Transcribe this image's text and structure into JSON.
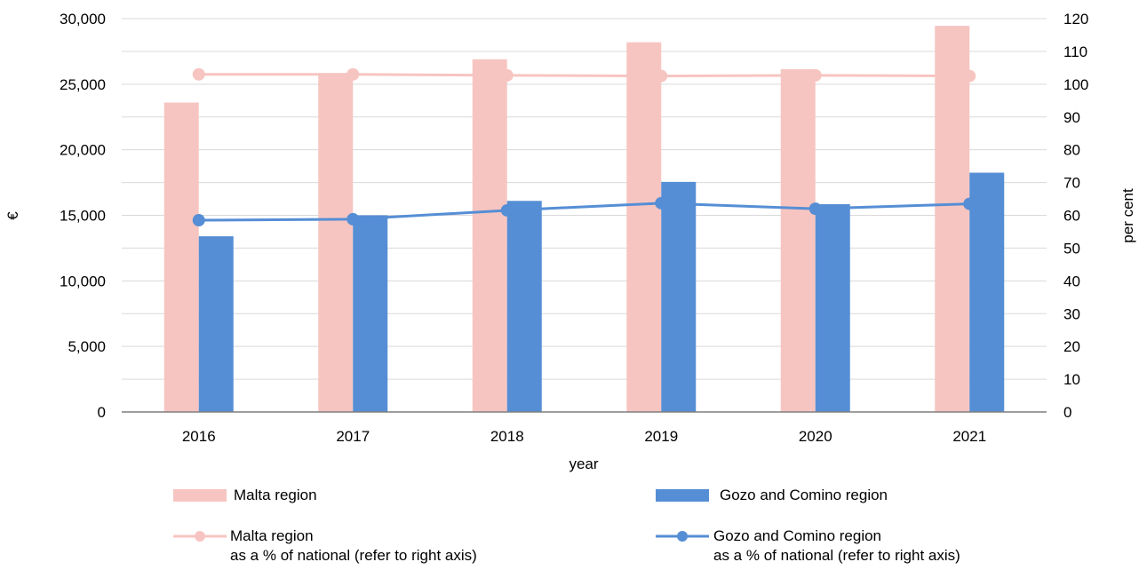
{
  "chart_data": {
    "type": "bar",
    "categories": [
      "2016",
      "2017",
      "2018",
      "2019",
      "2020",
      "2021"
    ],
    "xlabel": "year",
    "ylabel_left": "€",
    "ylabel_right": "per cent",
    "ylim_left": [
      0,
      30000
    ],
    "ylim_right": [
      0,
      120
    ],
    "yticks_left": [
      "0",
      "5,000",
      "10,000",
      "15,000",
      "20,000",
      "25,000",
      "30,000"
    ],
    "yticks_right": [
      "0",
      "10",
      "20",
      "30",
      "40",
      "50",
      "60",
      "70",
      "80",
      "90",
      "100",
      "110",
      "120"
    ],
    "grid": true,
    "legend_position": "bottom",
    "bar_series": [
      {
        "name": "Malta region",
        "color": "#f7c5c1",
        "values": [
          23600,
          25850,
          26900,
          28200,
          26150,
          29450
        ]
      },
      {
        "name": "Gozo and Comino region",
        "color": "#558ed5",
        "values": [
          13400,
          15000,
          16100,
          17550,
          15850,
          18250
        ]
      }
    ],
    "line_series": [
      {
        "name": "Malta region",
        "name_line2": "as a % of national (refer to right axis)",
        "color": "#f7c5c1",
        "axis": "right",
        "values": [
          103,
          103,
          102.7,
          102.5,
          102.7,
          102.5
        ]
      },
      {
        "name": "Gozo and Comino region",
        "name_line2": "as a % of national (refer to right axis)",
        "color": "#558ed5",
        "axis": "right",
        "values": [
          58.5,
          58.8,
          61.5,
          63.7,
          62,
          63.5
        ]
      }
    ]
  }
}
